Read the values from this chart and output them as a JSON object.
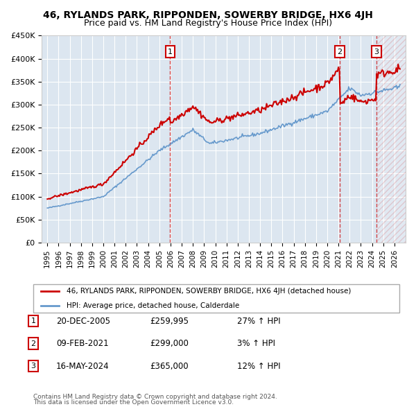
{
  "title": "46, RYLANDS PARK, RIPPONDEN, SOWERBY BRIDGE, HX6 4JH",
  "subtitle": "Price paid vs. HM Land Registry's House Price Index (HPI)",
  "legend_line1": "46, RYLANDS PARK, RIPPONDEN, SOWERBY BRIDGE, HX6 4JH (detached house)",
  "legend_line2": "HPI: Average price, detached house, Calderdale",
  "footer1": "Contains HM Land Registry data © Crown copyright and database right 2024.",
  "footer2": "This data is licensed under the Open Government Licence v3.0.",
  "transactions": [
    {
      "num": 1,
      "date": "20-DEC-2005",
      "price": "£259,995",
      "hpi": "27% ↑ HPI",
      "year": 2005.97
    },
    {
      "num": 2,
      "date": "09-FEB-2021",
      "price": "£299,000",
      "hpi": "3% ↑ HPI",
      "year": 2021.12
    },
    {
      "num": 3,
      "date": "16-MAY-2024",
      "price": "£365,000",
      "hpi": "12% ↑ HPI",
      "year": 2024.38
    }
  ],
  "hpi_color": "#6699cc",
  "sold_color": "#cc0000",
  "background_color": "#dce6f0",
  "plot_bg_color": "#dce6f0",
  "grid_color": "#ffffff",
  "hatch_color": "#cc0000",
  "ylim": [
    0,
    450000
  ],
  "xlim_start": 1995,
  "xlim_end": 2027
}
